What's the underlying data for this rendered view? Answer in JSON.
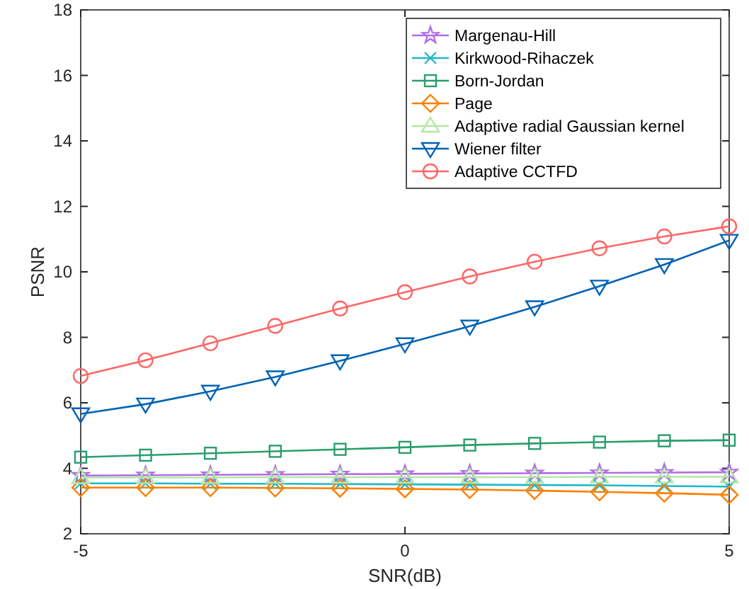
{
  "chart_data": {
    "type": "line",
    "xlabel": "SNR(dB)",
    "ylabel": "PSNR",
    "x": [
      -5,
      -4,
      -3,
      -2,
      -1,
      0,
      1,
      2,
      3,
      4,
      5
    ],
    "xlim": [
      -5,
      5
    ],
    "xticks": [
      -5,
      0,
      5
    ],
    "ylim": [
      2,
      18
    ],
    "yticks": [
      2,
      4,
      6,
      8,
      10,
      12,
      14,
      16,
      18
    ],
    "grid": false,
    "legend": "top right",
    "series": [
      {
        "name": "Margenau-Hill",
        "color": "#b06ee6",
        "marker": "star",
        "values": [
          3.78,
          3.79,
          3.8,
          3.81,
          3.82,
          3.83,
          3.84,
          3.85,
          3.86,
          3.87,
          3.88
        ]
      },
      {
        "name": "Kirkwood-Rihaczek",
        "color": "#1fb8c8",
        "marker": "cross",
        "values": [
          3.54,
          3.54,
          3.53,
          3.53,
          3.52,
          3.51,
          3.5,
          3.49,
          3.48,
          3.46,
          3.44
        ]
      },
      {
        "name": "Born-Jordan",
        "color": "#2a9d6e",
        "marker": "square",
        "values": [
          4.34,
          4.4,
          4.46,
          4.52,
          4.58,
          4.64,
          4.71,
          4.76,
          4.8,
          4.84,
          4.86
        ]
      },
      {
        "name": "Page",
        "color": "#ff8000",
        "marker": "diamond",
        "values": [
          3.41,
          3.41,
          3.41,
          3.4,
          3.39,
          3.37,
          3.35,
          3.32,
          3.28,
          3.24,
          3.19
        ]
      },
      {
        "name": "Adaptive radial Gaussian kernel",
        "color": "#b4e6a6",
        "marker": "triangle",
        "values": [
          3.72,
          3.72,
          3.72,
          3.73,
          3.73,
          3.73,
          3.73,
          3.73,
          3.74,
          3.74,
          3.74
        ]
      },
      {
        "name": "Wiener filter",
        "color": "#0062b4",
        "marker": "triangle-down",
        "values": [
          5.66,
          5.96,
          6.35,
          6.79,
          7.28,
          7.8,
          8.34,
          8.93,
          9.56,
          10.22,
          10.96
        ]
      },
      {
        "name": "Adaptive CCTFD",
        "color": "#ff6666",
        "marker": "circle",
        "values": [
          6.82,
          7.3,
          7.82,
          8.35,
          8.88,
          9.38,
          9.86,
          10.31,
          10.72,
          11.08,
          11.39
        ]
      }
    ]
  }
}
